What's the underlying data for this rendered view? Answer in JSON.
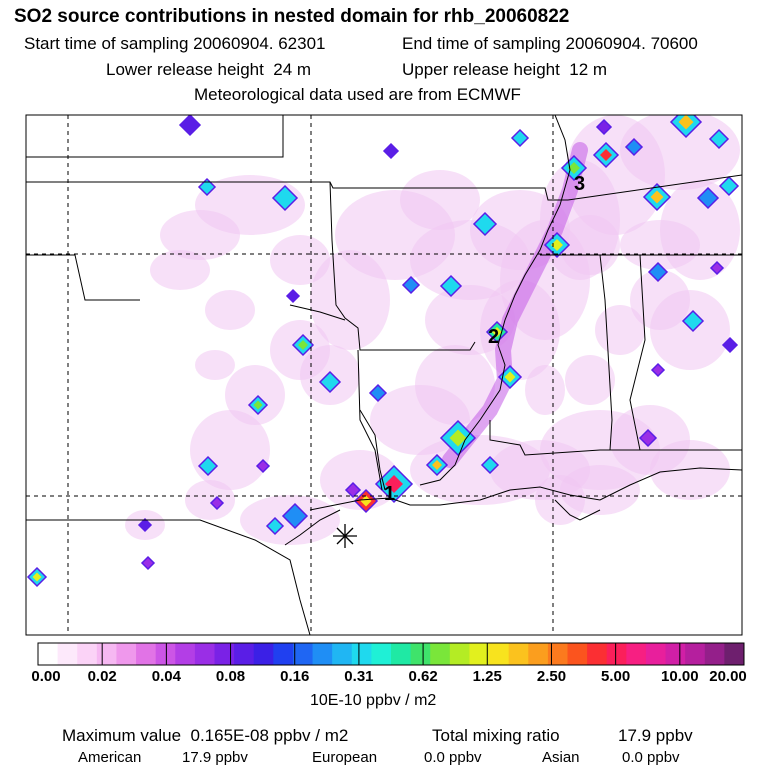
{
  "header": {
    "title": "SO2 source contributions in nested domain for rhb_20060822",
    "start_label": "Start time of sampling",
    "start_value": "20060904. 62301",
    "end_label": "End time of sampling",
    "end_value": "20060904. 70600",
    "lower_label": "Lower release height",
    "lower_value": "24 m",
    "upper_label": "Upper release height",
    "upper_value": "12 m",
    "met_line": "Meteorological data used are from ECMWF"
  },
  "map": {
    "markers": [
      {
        "label": "1",
        "color": "#000000"
      },
      {
        "label": "2",
        "color": "#000000"
      },
      {
        "label": "3",
        "color": "#000000"
      }
    ],
    "release_symbol": "asterisk-icon"
  },
  "colorbar": {
    "colors": [
      "#ffffff",
      "#fde9fb",
      "#fbd3f7",
      "#f6b8f2",
      "#ef98ec",
      "#e173e6",
      "#cc55e6",
      "#b33ee6",
      "#9a2ee6",
      "#7a22e6",
      "#5a1ee6",
      "#3b20e6",
      "#2040f0",
      "#1f66f3",
      "#1f8ef5",
      "#20b6f3",
      "#1fd9ee",
      "#1ff0d6",
      "#1fe9a4",
      "#3fe36b",
      "#7ae63a",
      "#b4ec24",
      "#e2f01e",
      "#f8e31e",
      "#fbc21e",
      "#fb9e1e",
      "#fb7a1e",
      "#fb541e",
      "#fb2f33",
      "#fb1f5a",
      "#f71f82",
      "#e81f9c",
      "#d11fa6",
      "#b51f9e",
      "#941f8a",
      "#6e1f6e"
    ],
    "labels": [
      "0.00",
      "0.02",
      "0.04",
      "0.08",
      "0.16",
      "0.31",
      "0.62",
      "1.25",
      "2.50",
      "5.00",
      "10.00",
      "20.00"
    ],
    "units": "10E-10 ppbv / m2"
  },
  "stats": {
    "max_label": "Maximum value",
    "max_value": "0.165E-08 ppbv / m2",
    "total_label": "Total mixing ratio",
    "total_value": "17.9 ppbv",
    "american_label": "American",
    "american_value": "17.9 ppbv",
    "european_label": "European",
    "european_value": "0.0 ppbv",
    "asian_label": "Asian",
    "asian_value": "0.0 ppbv"
  }
}
